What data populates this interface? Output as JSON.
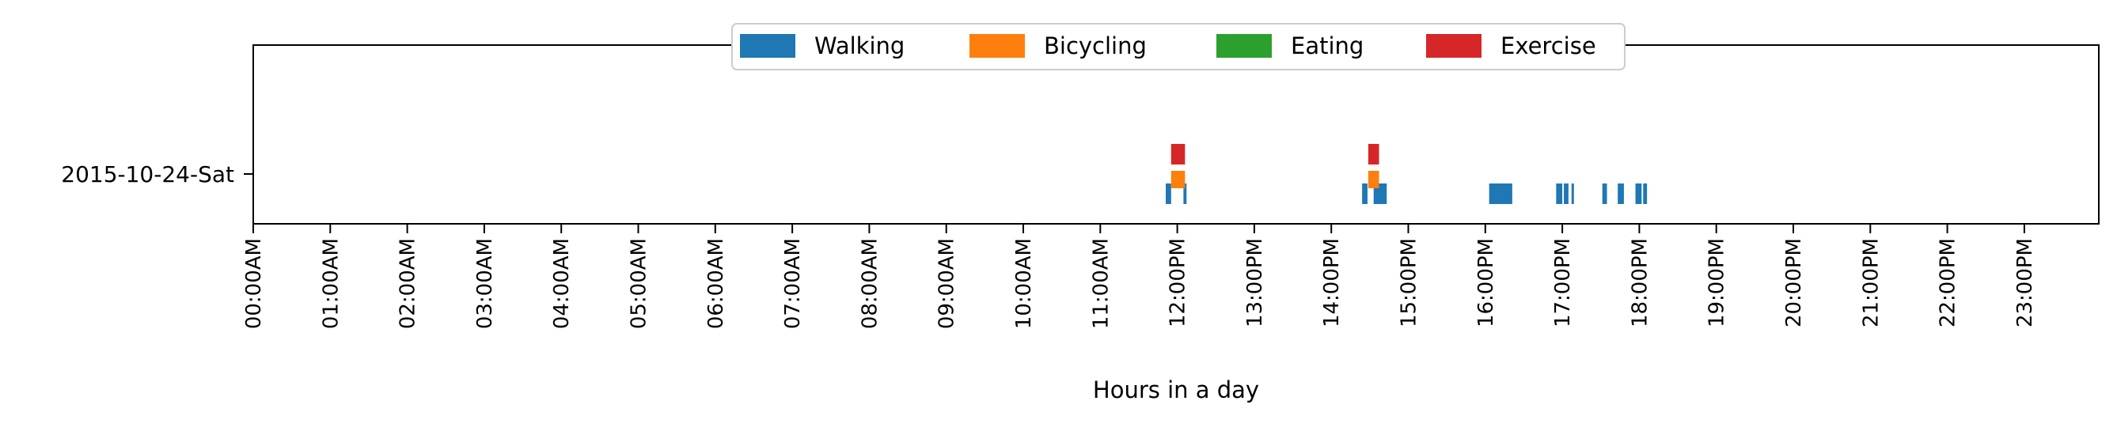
{
  "chart_data": {
    "type": "timeline",
    "xlabel": "Hours in a day",
    "ylabel": "",
    "title": "",
    "xlim": [
      0,
      24
    ],
    "x_ticks": [
      0,
      1,
      2,
      3,
      4,
      5,
      6,
      7,
      8,
      9,
      10,
      11,
      12,
      13,
      14,
      15,
      16,
      17,
      18,
      19,
      20,
      21,
      22,
      23
    ],
    "x_tick_labels": [
      "00:00AM",
      "01:00AM",
      "02:00AM",
      "03:00AM",
      "04:00AM",
      "05:00AM",
      "06:00AM",
      "07:00AM",
      "08:00AM",
      "09:00AM",
      "10:00AM",
      "11:00AM",
      "12:00PM",
      "13:00PM",
      "14:00PM",
      "15:00PM",
      "16:00PM",
      "17:00PM",
      "18:00PM",
      "19:00PM",
      "20:00PM",
      "21:00PM",
      "22:00PM",
      "23:00PM"
    ],
    "y_categories": [
      "2015-10-24-Sat"
    ],
    "grid": false,
    "legend_position": "top-center",
    "series": [
      {
        "name": "Walking",
        "color": "#1f77b4",
        "intervals": [
          [
            11.85,
            11.92
          ],
          [
            12.08,
            12.12
          ],
          [
            14.4,
            14.47
          ],
          [
            14.55,
            14.72
          ],
          [
            16.05,
            16.35
          ],
          [
            16.92,
            17.0
          ],
          [
            17.02,
            17.08
          ],
          [
            17.12,
            17.15
          ],
          [
            17.52,
            17.58
          ],
          [
            17.72,
            17.8
          ],
          [
            17.95,
            18.03
          ],
          [
            18.05,
            18.1
          ]
        ]
      },
      {
        "name": "Bicycling",
        "color": "#ff7f0e",
        "intervals": [
          [
            11.92,
            12.1
          ],
          [
            14.48,
            14.62
          ]
        ]
      },
      {
        "name": "Eating",
        "color": "#2ca02c",
        "intervals": []
      },
      {
        "name": "Exercise",
        "color": "#d62728",
        "intervals": [
          [
            11.92,
            12.1
          ],
          [
            14.48,
            14.62
          ]
        ]
      }
    ]
  }
}
